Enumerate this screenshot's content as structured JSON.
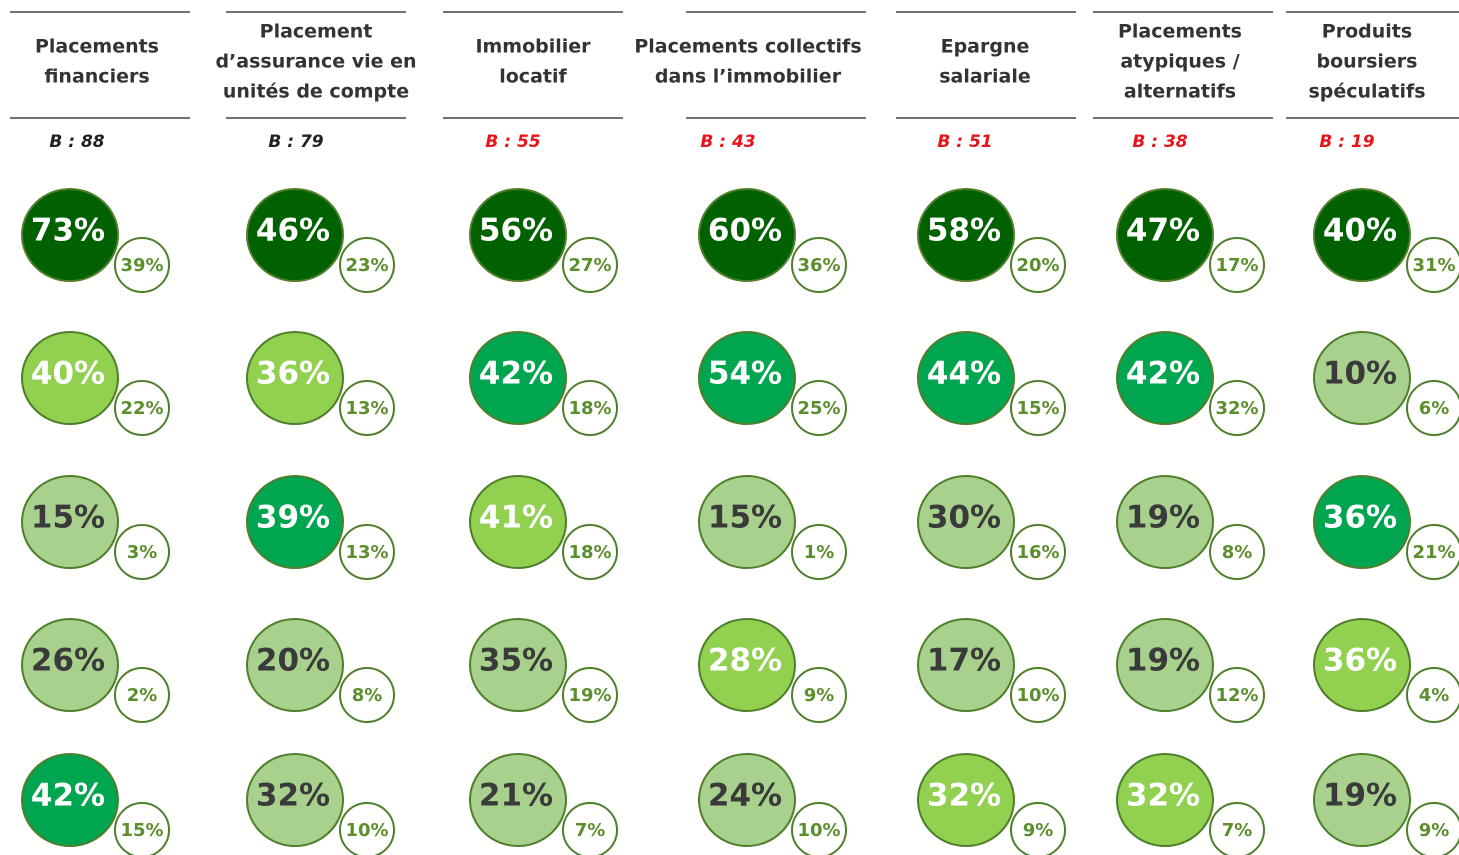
{
  "columns": [
    {
      "header": [
        "Placements",
        "financiers"
      ],
      "base": "B : 88",
      "base_color": "#222222",
      "bubbles": [
        {
          "value": "73%",
          "sub": "39%",
          "fill": "#006100",
          "text": "#ffffff"
        },
        {
          "value": "40%",
          "sub": "22%",
          "fill": "#92d050",
          "text": "#ffffff"
        },
        {
          "value": "15%",
          "sub": "3%",
          "fill": "#a9d18e",
          "text": "#3a3a3a"
        },
        {
          "value": "26%",
          "sub": "2%",
          "fill": "#a9d18e",
          "text": "#3a3a3a"
        },
        {
          "value": "42%",
          "sub": "15%",
          "fill": "#00a550",
          "text": "#ffffff"
        }
      ]
    },
    {
      "header": [
        "Placement",
        "d’assurance vie en",
        "unités de compte"
      ],
      "base": "B : 79",
      "base_color": "#222222",
      "bubbles": [
        {
          "value": "46%",
          "sub": "23%",
          "fill": "#006100",
          "text": "#ffffff"
        },
        {
          "value": "36%",
          "sub": "13%",
          "fill": "#92d050",
          "text": "#ffffff"
        },
        {
          "value": "39%",
          "sub": "13%",
          "fill": "#00a550",
          "text": "#ffffff"
        },
        {
          "value": "20%",
          "sub": "8%",
          "fill": "#a9d18e",
          "text": "#3a3a3a"
        },
        {
          "value": "32%",
          "sub": "10%",
          "fill": "#a9d18e",
          "text": "#3a3a3a"
        }
      ]
    },
    {
      "header": [
        "Immobilier",
        "locatif"
      ],
      "base": "B : 55",
      "base_color": "#e8141a",
      "bubbles": [
        {
          "value": "56%",
          "sub": "27%",
          "fill": "#006100",
          "text": "#ffffff"
        },
        {
          "value": "42%",
          "sub": "18%",
          "fill": "#00a550",
          "text": "#ffffff"
        },
        {
          "value": "41%",
          "sub": "18%",
          "fill": "#92d050",
          "text": "#ffffff"
        },
        {
          "value": "35%",
          "sub": "19%",
          "fill": "#a9d18e",
          "text": "#3a3a3a"
        },
        {
          "value": "21%",
          "sub": "7%",
          "fill": "#a9d18e",
          "text": "#3a3a3a"
        }
      ]
    },
    {
      "header": [
        "Placements collectifs",
        "dans l’immobilier"
      ],
      "base": "B : 43",
      "base_color": "#e8141a",
      "bubbles": [
        {
          "value": "60%",
          "sub": "36%",
          "fill": "#006100",
          "text": "#ffffff"
        },
        {
          "value": "54%",
          "sub": "25%",
          "fill": "#00a550",
          "text": "#ffffff"
        },
        {
          "value": "15%",
          "sub": "1%",
          "fill": "#a9d18e",
          "text": "#3a3a3a"
        },
        {
          "value": "28%",
          "sub": "9%",
          "fill": "#92d050",
          "text": "#ffffff"
        },
        {
          "value": "24%",
          "sub": "10%",
          "fill": "#a9d18e",
          "text": "#3a3a3a"
        }
      ]
    },
    {
      "header": [
        "Epargne",
        "salariale"
      ],
      "base": "B : 51",
      "base_color": "#e8141a",
      "bubbles": [
        {
          "value": "58%",
          "sub": "20%",
          "fill": "#006100",
          "text": "#ffffff"
        },
        {
          "value": "44%",
          "sub": "15%",
          "fill": "#00a550",
          "text": "#ffffff"
        },
        {
          "value": "30%",
          "sub": "16%",
          "fill": "#a9d18e",
          "text": "#3a3a3a"
        },
        {
          "value": "17%",
          "sub": "10%",
          "fill": "#a9d18e",
          "text": "#3a3a3a"
        },
        {
          "value": "32%",
          "sub": "9%",
          "fill": "#92d050",
          "text": "#ffffff"
        }
      ]
    },
    {
      "header": [
        "Placements",
        "atypiques /",
        "alternatifs"
      ],
      "base": "B : 38",
      "base_color": "#e8141a",
      "bubbles": [
        {
          "value": "47%",
          "sub": "17%",
          "fill": "#006100",
          "text": "#ffffff"
        },
        {
          "value": "42%",
          "sub": "32%",
          "fill": "#00a550",
          "text": "#ffffff"
        },
        {
          "value": "19%",
          "sub": "8%",
          "fill": "#a9d18e",
          "text": "#3a3a3a"
        },
        {
          "value": "19%",
          "sub": "12%",
          "fill": "#a9d18e",
          "text": "#3a3a3a"
        },
        {
          "value": "32%",
          "sub": "7%",
          "fill": "#92d050",
          "text": "#ffffff"
        }
      ]
    },
    {
      "header": [
        "Produits",
        "boursiers",
        "spéculatifs"
      ],
      "base": "B : 19",
      "base_color": "#e8141a",
      "bubbles": [
        {
          "value": "40%",
          "sub": "31%",
          "fill": "#006100",
          "text": "#ffffff"
        },
        {
          "value": "10%",
          "sub": "6%",
          "fill": "#a9d18e",
          "text": "#3a3a3a"
        },
        {
          "value": "36%",
          "sub": "21%",
          "fill": "#00a550",
          "text": "#ffffff"
        },
        {
          "value": "36%",
          "sub": "4%",
          "fill": "#92d050",
          "text": "#ffffff"
        },
        {
          "value": "19%",
          "sub": "9%",
          "fill": "#a9d18e",
          "text": "#3a3a3a"
        }
      ]
    }
  ]
}
